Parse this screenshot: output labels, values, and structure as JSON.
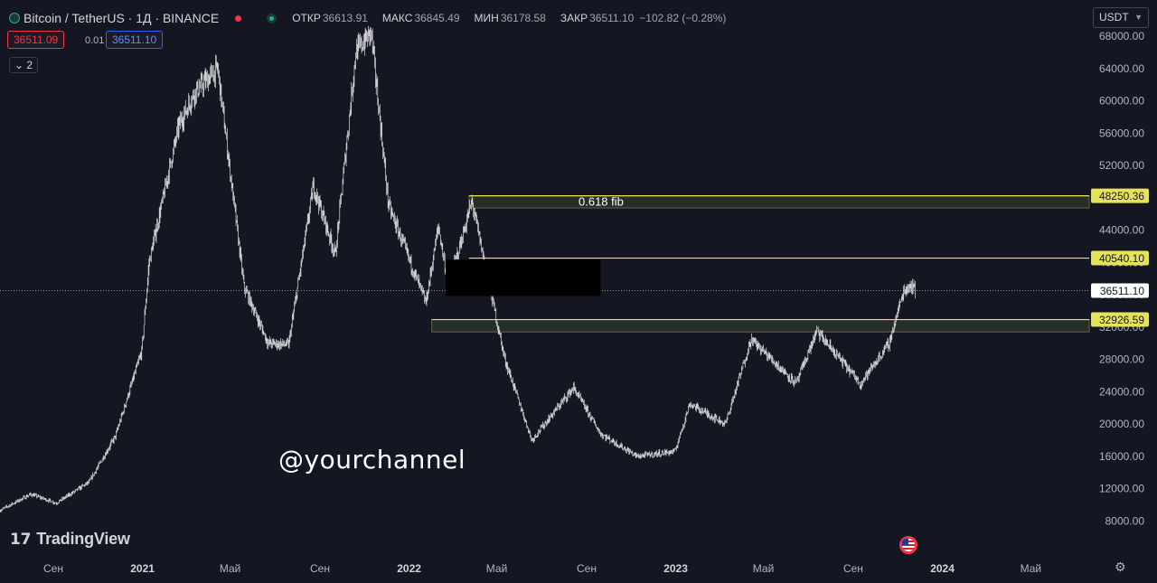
{
  "header": {
    "symbol": "Bitcoin / TetherUS · 1Д · BINANCE",
    "open_label": "ОТКР",
    "open": "36613.91",
    "high_label": "МАКС",
    "high": "36845.49",
    "low_label": "МИН",
    "low": "36178.58",
    "close_label": "ЗАКР",
    "close": "36511.10",
    "change": "−102.82 (−0.28%)"
  },
  "order": {
    "sell": "36511.09",
    "spread": "0.01",
    "buy": "36511.10"
  },
  "indicators_count": "2",
  "currency": "USDT",
  "logo": "TradingView",
  "watermark": "@yourchannel",
  "colors": {
    "background": "#141722",
    "candle": "#ffffff",
    "level": "#e6e35a",
    "zone": "#2b3028",
    "axis_text": "#b2b5be"
  },
  "chart_data": {
    "type": "candlestick",
    "y_ticks": [
      8000,
      12000,
      16000,
      20000,
      24000,
      28000,
      32000,
      36000,
      40000,
      44000,
      48000,
      52000,
      56000,
      60000,
      64000,
      68000
    ],
    "y_tick_labels": [
      "8000.00",
      "12000.00",
      "16000.00",
      "20000.00",
      "24000.00",
      "28000.00",
      "32000.00",
      "36000.00",
      "40000.00",
      "44000.00",
      "48000.00",
      "52000.00",
      "56000.00",
      "60000.00",
      "64000.00",
      "68000.00"
    ],
    "ylim": [
      4000,
      72500
    ],
    "x_ticks": [
      {
        "t": "2020-09-01",
        "label": "Сен",
        "bold": false
      },
      {
        "t": "2021-01-01",
        "label": "2021",
        "bold": true
      },
      {
        "t": "2021-05-01",
        "label": "Май",
        "bold": false
      },
      {
        "t": "2021-09-01",
        "label": "Сен",
        "bold": false
      },
      {
        "t": "2022-01-01",
        "label": "2022",
        "bold": true
      },
      {
        "t": "2022-05-01",
        "label": "Май",
        "bold": false
      },
      {
        "t": "2022-09-01",
        "label": "Сен",
        "bold": false
      },
      {
        "t": "2023-01-01",
        "label": "2023",
        "bold": true
      },
      {
        "t": "2023-05-01",
        "label": "Май",
        "bold": false
      },
      {
        "t": "2023-09-01",
        "label": "Сен",
        "bold": false
      },
      {
        "t": "2024-01-01",
        "label": "2024",
        "bold": true
      },
      {
        "t": "2024-05-01",
        "label": "Май",
        "bold": false
      }
    ],
    "xlim": [
      "2020-06-20",
      "2024-07-20"
    ],
    "price_path": [
      [
        "2020-06-20",
        9300
      ],
      [
        "2020-08-01",
        11300
      ],
      [
        "2020-09-05",
        10200
      ],
      [
        "2020-10-20",
        12800
      ],
      [
        "2020-11-25",
        18500
      ],
      [
        "2020-12-31",
        29000
      ],
      [
        "2021-01-10",
        40000
      ],
      [
        "2021-02-20",
        57000
      ],
      [
        "2021-03-13",
        61000
      ],
      [
        "2021-04-14",
        64000
      ],
      [
        "2021-05-20",
        37000
      ],
      [
        "2021-06-22",
        30000
      ],
      [
        "2021-07-20",
        29800
      ],
      [
        "2021-08-23",
        49500
      ],
      [
        "2021-09-22",
        41000
      ],
      [
        "2021-10-20",
        66000
      ],
      [
        "2021-11-10",
        68500
      ],
      [
        "2021-12-04",
        47000
      ],
      [
        "2022-01-24",
        35000
      ],
      [
        "2022-02-10",
        44500
      ],
      [
        "2022-02-24",
        37000
      ],
      [
        "2022-03-28",
        47500
      ],
      [
        "2022-05-12",
        28000
      ],
      [
        "2022-06-18",
        18000
      ],
      [
        "2022-08-14",
        24500
      ],
      [
        "2022-09-20",
        18800
      ],
      [
        "2022-11-09",
        16000
      ],
      [
        "2022-12-31",
        16600
      ],
      [
        "2023-01-20",
        22500
      ],
      [
        "2023-03-10",
        20000
      ],
      [
        "2023-04-14",
        30500
      ],
      [
        "2023-06-15",
        25000
      ],
      [
        "2023-07-13",
        31500
      ],
      [
        "2023-09-11",
        25000
      ],
      [
        "2023-10-20",
        30000
      ],
      [
        "2023-11-09",
        36500
      ],
      [
        "2023-11-20",
        37300
      ],
      [
        "2023-11-25",
        36511
      ]
    ],
    "levels": [
      {
        "value": 48250.36,
        "label": "48250.36",
        "from": "2022-03-24",
        "zone": [
          46750,
          48250
        ]
      },
      {
        "value": 40540.1,
        "label": "40540.10",
        "from": "2022-03-24",
        "zone": null
      },
      {
        "value": 32926.59,
        "label": "32926.59",
        "from": "2022-02-01",
        "zone": [
          31400,
          32926.59
        ]
      }
    ],
    "fib_label": "0.618 fib",
    "current_price": 36511.1,
    "current_price_label": "36511.10",
    "redaction": {
      "from": "2022-02-20",
      "to": "2022-09-20",
      "top": 40350,
      "bottom": 35850
    }
  }
}
